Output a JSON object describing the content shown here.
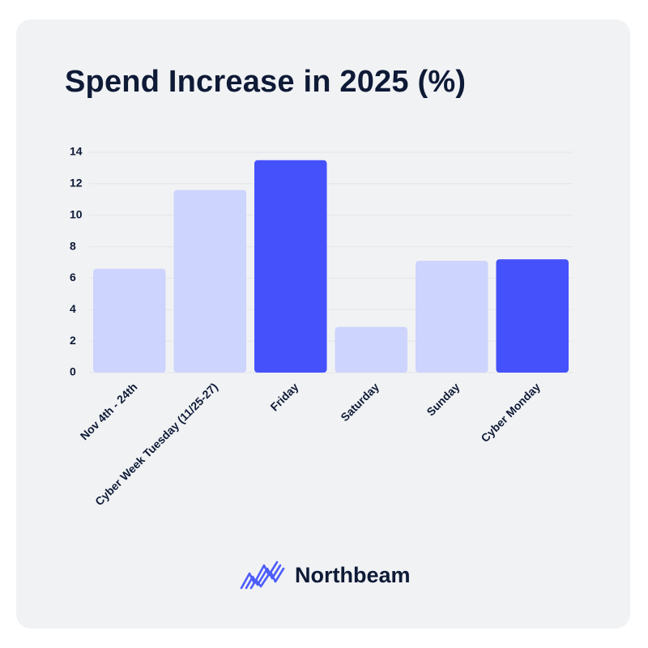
{
  "title": "Spend Increase in 2025 (%)",
  "brand": {
    "name": "Northbeam",
    "icon": "northbeam-logo-icon",
    "color": "#4d5dfb"
  },
  "colors": {
    "highlight": "#4552fb",
    "normal": "#cdd4fd",
    "grid": "#e3e4ea",
    "text": "#0e1a36"
  },
  "chart_data": {
    "type": "bar",
    "title": "Spend Increase in 2025 (%)",
    "xlabel": "",
    "ylabel": "",
    "categories": [
      "Nov 4th - 24th",
      "Cyber Week Tuesday (11/25-27)",
      "Friday",
      "Saturday",
      "Sunday",
      "Cyber Monday"
    ],
    "values": [
      6.6,
      11.6,
      13.5,
      2.9,
      7.1,
      7.2
    ],
    "highlighted": [
      false,
      false,
      true,
      false,
      false,
      true
    ],
    "ylim": [
      0,
      14
    ],
    "yticks": [
      0,
      2,
      4,
      6,
      8,
      10,
      12,
      14
    ],
    "grid": true,
    "legend": "none"
  }
}
